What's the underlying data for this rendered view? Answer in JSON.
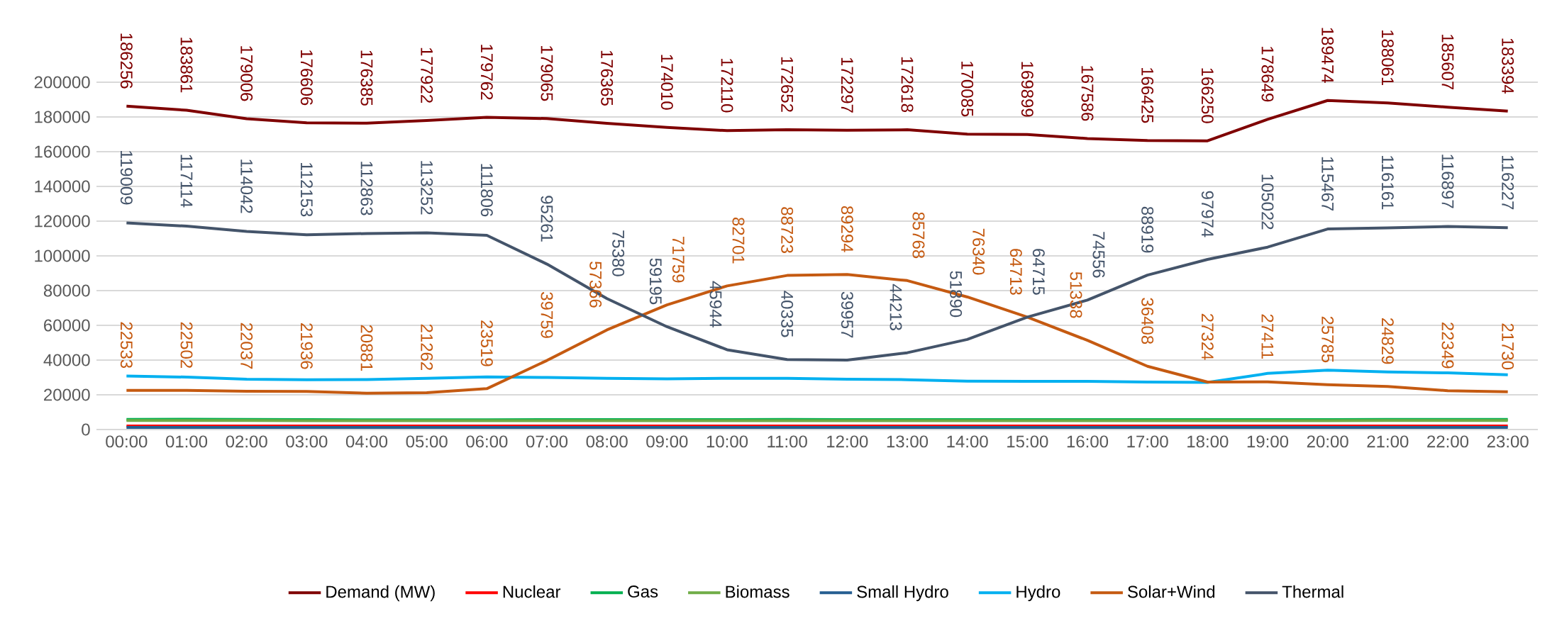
{
  "chart_data": {
    "type": "line",
    "categories": [
      "00:00",
      "01:00",
      "02:00",
      "03:00",
      "04:00",
      "05:00",
      "06:00",
      "07:00",
      "08:00",
      "09:00",
      "10:00",
      "11:00",
      "12:00",
      "13:00",
      "14:00",
      "15:00",
      "16:00",
      "17:00",
      "18:00",
      "19:00",
      "20:00",
      "21:00",
      "22:00",
      "23:00"
    ],
    "ylim": [
      0,
      200000
    ],
    "yticks": [
      0,
      20000,
      40000,
      60000,
      80000,
      100000,
      120000,
      140000,
      160000,
      180000,
      200000
    ],
    "grid": "y",
    "legend": "bottom",
    "series": [
      {
        "name": "Demand (MW)",
        "color": "#7f0000",
        "values": [
          186256,
          183861,
          179006,
          176606,
          176385,
          177922,
          179762,
          179065,
          176365,
          174010,
          172110,
          172652,
          172297,
          172618,
          170085,
          169899,
          167586,
          166425,
          166250,
          178649,
          189474,
          188061,
          185607,
          183394
        ],
        "value_labels": [
          "186256",
          "183861",
          "179006",
          "176606",
          "176385",
          "177922",
          "179762",
          "179065",
          "176365",
          "174010",
          "172110",
          "172652",
          "172297",
          "172618",
          "170085",
          "169899",
          "167586",
          "166425",
          "166250",
          "178649",
          "189474",
          "188061",
          "185607",
          "183394"
        ]
      },
      {
        "name": "Nuclear",
        "color": "#ff0000",
        "values": [
          2000,
          2000,
          2000,
          2000,
          2000,
          2000,
          2000,
          2000,
          2000,
          2000,
          2000,
          2000,
          2000,
          2000,
          2000,
          2000,
          2000,
          2000,
          2000,
          2000,
          2000,
          2000,
          2000,
          2000
        ]
      },
      {
        "name": "Gas",
        "color": "#00b050",
        "values": [
          5800,
          5900,
          5800,
          5700,
          5600,
          5600,
          5600,
          5700,
          5700,
          5700,
          5700,
          5800,
          5700,
          5700,
          5700,
          5700,
          5700,
          5700,
          5700,
          5700,
          5700,
          5800,
          5800,
          5800
        ]
      },
      {
        "name": "Biomass",
        "color": "#70ad47",
        "values": [
          5200,
          5200,
          5200,
          5100,
          5100,
          5100,
          5100,
          5100,
          5100,
          5100,
          5100,
          5100,
          5100,
          5100,
          5100,
          5100,
          5100,
          5100,
          5100,
          5100,
          5100,
          5200,
          5200,
          5200
        ]
      },
      {
        "name": "Small Hydro",
        "color": "#255e91",
        "values": [
          1200,
          1200,
          1200,
          1200,
          1200,
          1200,
          1200,
          1200,
          1200,
          1200,
          1200,
          1200,
          1200,
          1200,
          1200,
          1200,
          1200,
          1200,
          1200,
          1200,
          1200,
          1200,
          1200,
          1200
        ]
      },
      {
        "name": "Hydro",
        "color": "#00b0f0",
        "values": [
          30800,
          30200,
          29000,
          28700,
          28800,
          29500,
          30300,
          30000,
          29500,
          29200,
          29500,
          29500,
          29000,
          28700,
          27900,
          27700,
          27700,
          27300,
          27100,
          32300,
          34200,
          33200,
          32600,
          31500
        ]
      },
      {
        "name": "Solar+Wind",
        "color": "#c55a11",
        "values": [
          22533,
          22502,
          22037,
          21936,
          20881,
          21262,
          23519,
          39759,
          57366,
          71759,
          82701,
          88723,
          89294,
          85768,
          76340,
          64713,
          51338,
          36408,
          27324,
          27411,
          25785,
          24829,
          22349,
          21730
        ],
        "value_labels": [
          "22533",
          "22502",
          "22037",
          "21936",
          "20881",
          "21262",
          "23519",
          "39759",
          "57366",
          "71759",
          "82701",
          "88723",
          "89294",
          "85768",
          "76340",
          "64713",
          "51338",
          "36408",
          "27324",
          "27411",
          "25785",
          "24829",
          "22349",
          "21730"
        ]
      },
      {
        "name": "Thermal",
        "color": "#44546a",
        "values": [
          119009,
          117114,
          114042,
          112153,
          112863,
          113252,
          111806,
          95261,
          75380,
          59195,
          45944,
          40335,
          39957,
          44213,
          51890,
          64715,
          74556,
          88919,
          97974,
          105022,
          115467,
          116161,
          116897,
          116227
        ],
        "value_labels": [
          "119009",
          "117114",
          "114042",
          "112153",
          "112863",
          "113252",
          "111806",
          "95261",
          "75380",
          "59195",
          "45944",
          "40335",
          "39957",
          "44213",
          "51890",
          "64715",
          "74556",
          "88919",
          "97974",
          "105022",
          "115467",
          "116161",
          "116897",
          "116227"
        ]
      }
    ]
  }
}
